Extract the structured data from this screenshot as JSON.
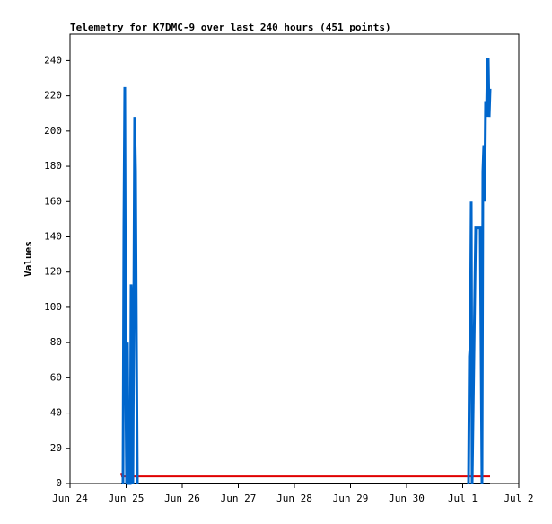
{
  "chart_data": {
    "type": "line",
    "title": "Telemetry for K7DMC-9 over last 240 hours (451 points)",
    "y_label": "Values",
    "xlim": [
      0,
      8
    ],
    "xticks": [
      {
        "value": 0,
        "label": "Jun 24"
      },
      {
        "value": 1,
        "label": "Jun 25"
      },
      {
        "value": 2,
        "label": "Jun 26"
      },
      {
        "value": 3,
        "label": "Jun 27"
      },
      {
        "value": 4,
        "label": "Jun 28"
      },
      {
        "value": 5,
        "label": "Jun 29"
      },
      {
        "value": 6,
        "label": "Jun 30"
      },
      {
        "value": 7,
        "label": "Jul 1"
      },
      {
        "value": 8,
        "label": "Jul 2"
      }
    ],
    "ylim": [
      0,
      255
    ],
    "yticks": [
      0,
      20,
      40,
      60,
      80,
      100,
      120,
      140,
      160,
      180,
      200,
      220,
      240
    ],
    "series": [
      {
        "color": "#000000",
        "x": [
          0.912,
          7.488
        ],
        "values": [
          0,
          0
        ]
      },
      {
        "color": "#e00000",
        "x": [
          0.912,
          0.928,
          7.488
        ],
        "values": [
          6,
          4,
          4
        ]
      },
      {
        "color": "#0066cc",
        "x": [
          0.944,
          0.96,
          0.976,
          0.992,
          1.008,
          1.024,
          1.04,
          1.072,
          1.088,
          1.104,
          1.12,
          1.136,
          1.152,
          1.168,
          1.184,
          1.2,
          null,
          7.104,
          7.12,
          7.136,
          7.152,
          7.168,
          7.232,
          7.312,
          7.344,
          7.36,
          7.376,
          7.392,
          7.408,
          7.424,
          7.44,
          7.456,
          7.472,
          7.488
        ],
        "values": [
          0,
          145,
          225,
          65,
          0,
          80,
          0,
          0,
          113,
          97,
          0,
          97,
          208,
          177,
          80,
          0,
          null,
          0,
          72,
          80,
          160,
          0,
          145,
          145,
          0,
          177,
          192,
          160,
          217,
          208,
          241,
          241,
          208,
          224
        ]
      }
    ]
  }
}
